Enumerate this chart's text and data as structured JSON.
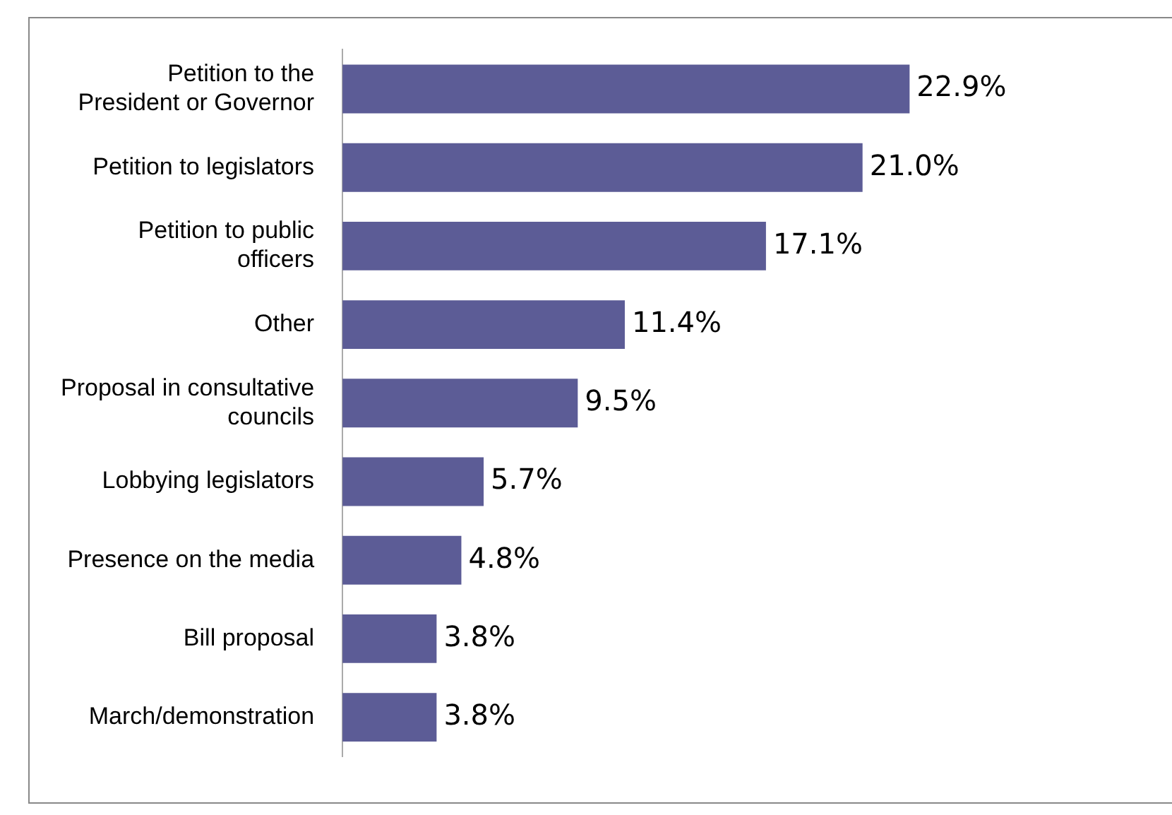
{
  "chart_data": {
    "type": "bar",
    "orientation": "horizontal",
    "categories": [
      "Petition to the President or Governor",
      "Petition to legislators",
      "Petition to public officers",
      "Other",
      "Proposal in consultative councils",
      "Lobbying legislators",
      "Presence on the media",
      "Bill proposal",
      "March/demonstration"
    ],
    "values": [
      22.9,
      21.0,
      17.1,
      11.4,
      9.5,
      5.7,
      4.8,
      3.8,
      3.8
    ],
    "value_labels": [
      "22.9%",
      "21.0%",
      "17.1%",
      "11.4%",
      "9.5%",
      "5.7%",
      "4.8%",
      "3.8%",
      "3.8%"
    ],
    "color": "#5c5c96",
    "tick_labels": "y",
    "grid": false,
    "legend": false
  }
}
